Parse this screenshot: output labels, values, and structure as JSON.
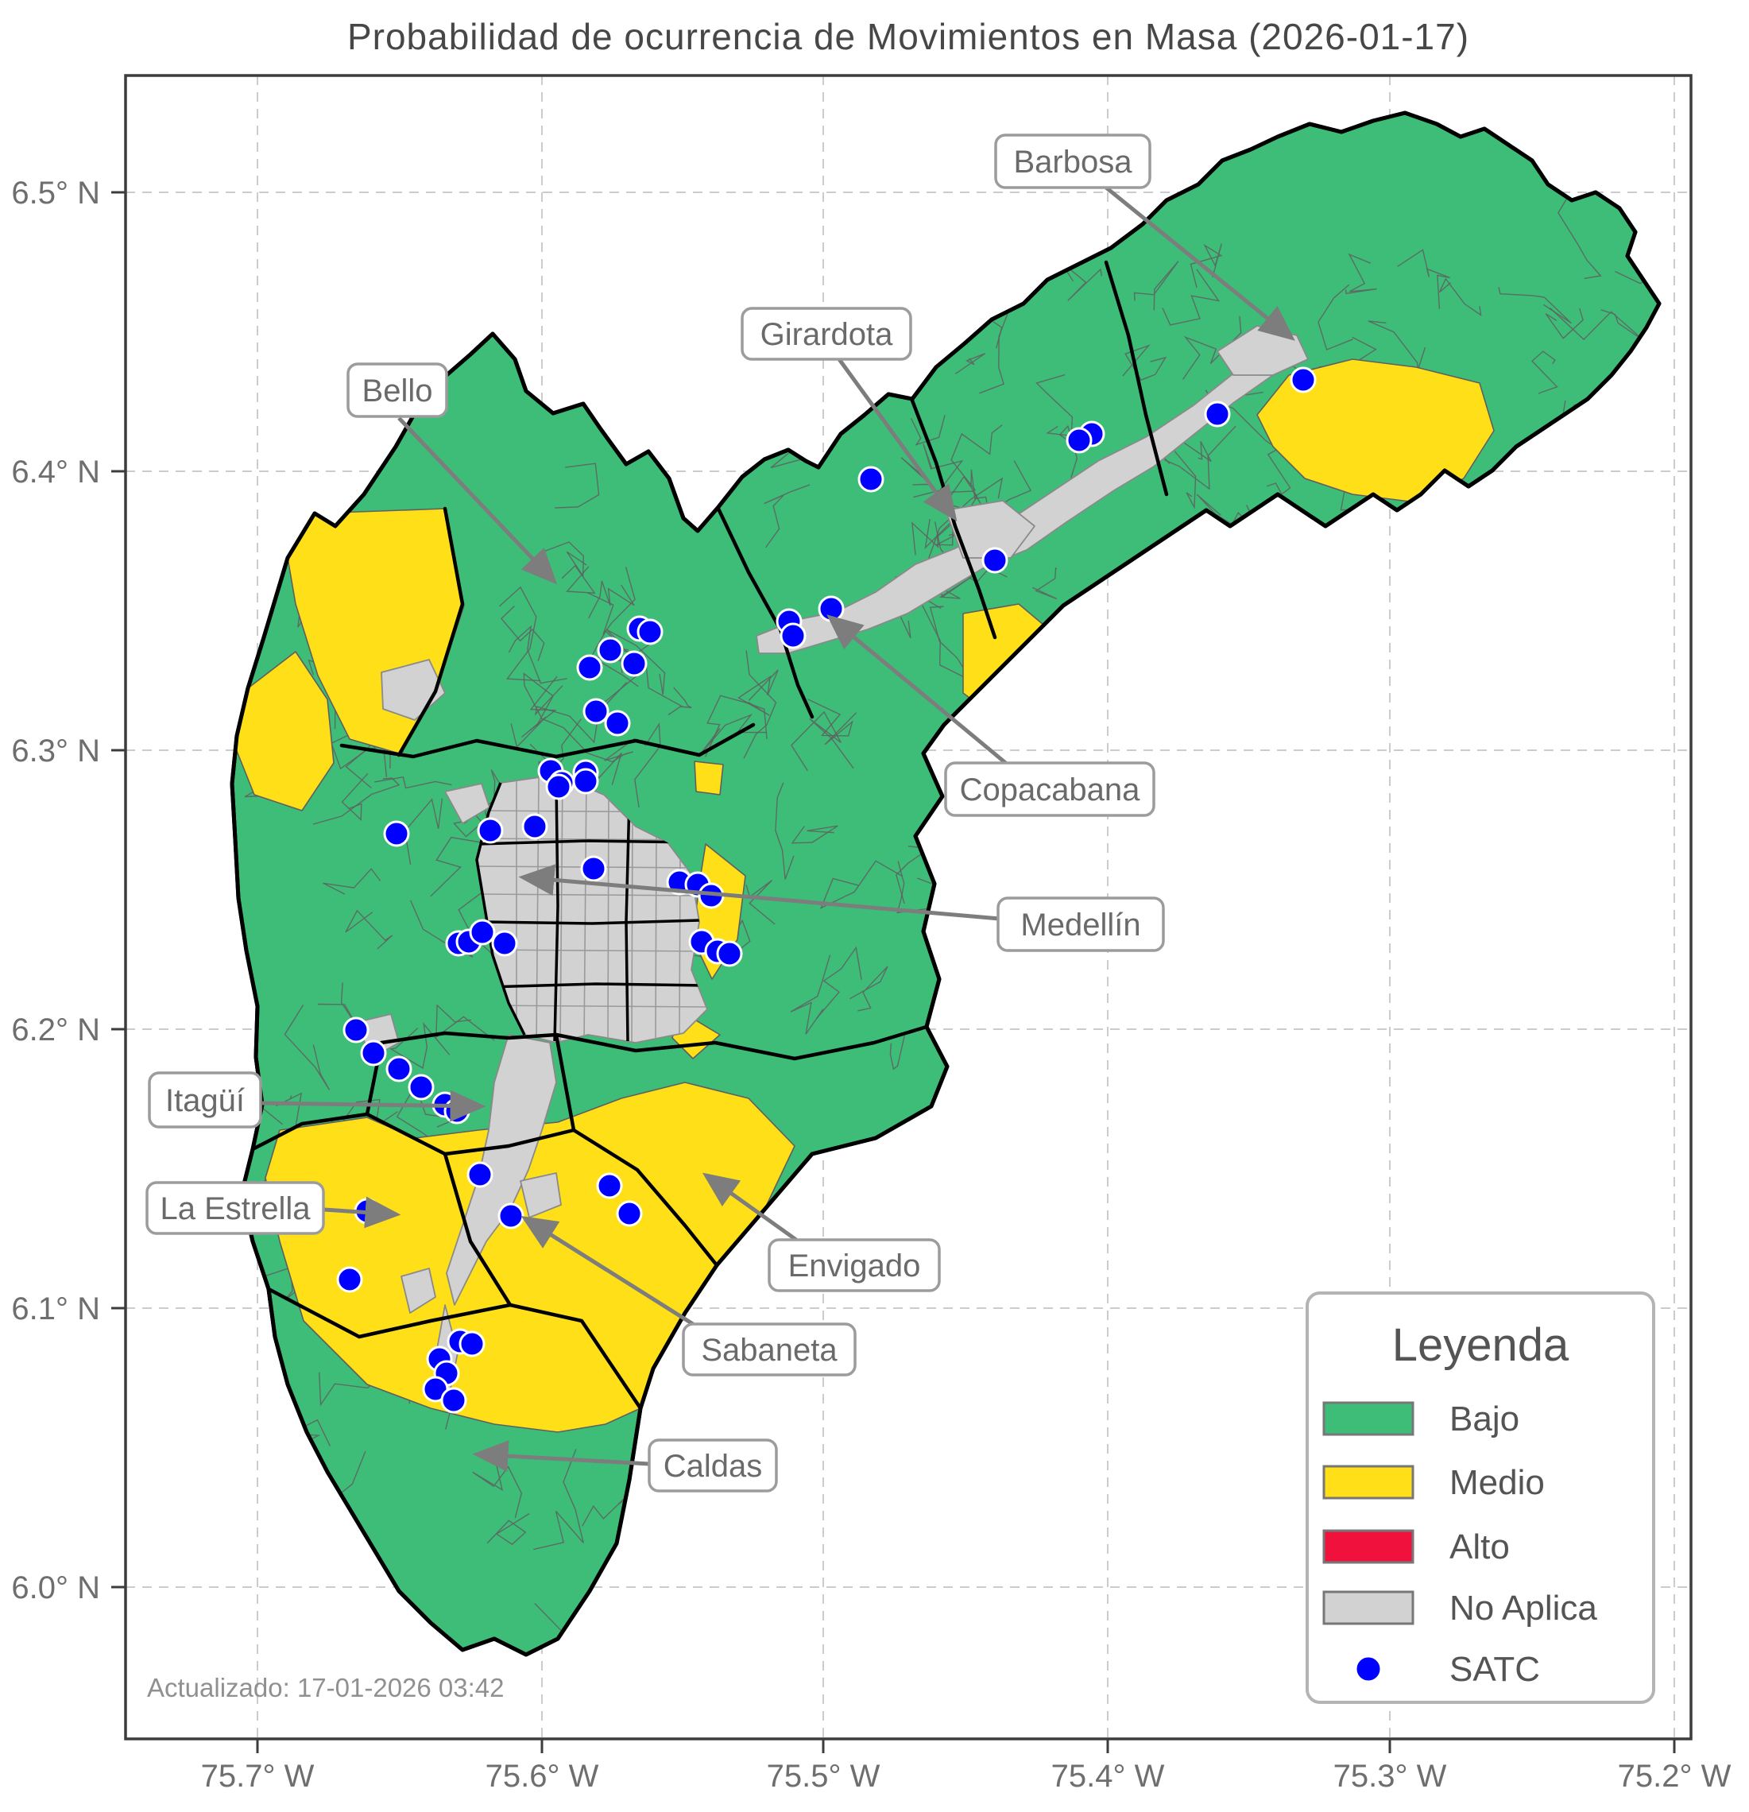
{
  "title": "Probabilidad de ocurrencia de Movimientos en Masa (2026-01-17)",
  "footnote": "Actualizado: 17-01-2026 03:42",
  "axes": {
    "x_ticks": [
      "75.7° W",
      "75.6° W",
      "75.5° W",
      "75.4° W",
      "75.3° W",
      "75.2° W"
    ],
    "y_ticks": [
      "6.5° N",
      "6.4° N",
      "6.3° N",
      "6.2° N",
      "6.1° N",
      "6.0° N"
    ]
  },
  "legend": {
    "title": "Leyenda",
    "items": [
      {
        "label": "Bajo",
        "color": "#3dbd78",
        "type": "patch"
      },
      {
        "label": "Medio",
        "color": "#ffdf17",
        "type": "patch"
      },
      {
        "label": "Alto",
        "color": "#f0113c",
        "type": "patch"
      },
      {
        "label": "No Aplica",
        "color": "#d2d2d2",
        "type": "patch"
      },
      {
        "label": "SATC",
        "color": "#0000ff",
        "type": "point"
      }
    ]
  },
  "cities": [
    {
      "name": "Barbosa"
    },
    {
      "name": "Girardota"
    },
    {
      "name": "Bello"
    },
    {
      "name": "Copacabana"
    },
    {
      "name": "Medellín"
    },
    {
      "name": "Itagüí"
    },
    {
      "name": "La Estrella"
    },
    {
      "name": "Envigado"
    },
    {
      "name": "Sabaneta"
    },
    {
      "name": "Caldas"
    }
  ],
  "colors": {
    "bajo": "#3dbd78",
    "medio": "#ffdf17",
    "alto": "#f0113c",
    "no_aplica": "#d2d2d2",
    "satc": "#0000ff",
    "arrow": "#7d7d7d"
  },
  "satc_points": [
    [
      1640,
      478
    ],
    [
      1532,
      521
    ],
    [
      1374,
      546
    ],
    [
      1358,
      554
    ],
    [
      1252,
      705
    ],
    [
      1096,
      603
    ],
    [
      1046,
      766
    ],
    [
      993,
      782
    ],
    [
      998,
      800
    ],
    [
      805,
      791
    ],
    [
      818,
      795
    ],
    [
      768,
      818
    ],
    [
      798,
      835
    ],
    [
      742,
      840
    ],
    [
      750,
      895
    ],
    [
      777,
      910
    ],
    [
      693,
      970
    ],
    [
      707,
      985
    ],
    [
      737,
      972
    ],
    [
      703,
      990
    ],
    [
      737,
      983
    ],
    [
      499,
      1049
    ],
    [
      617,
      1045
    ],
    [
      673,
      1040
    ],
    [
      747,
      1093
    ],
    [
      855,
      1110
    ],
    [
      878,
      1113
    ],
    [
      895,
      1127
    ],
    [
      577,
      1187
    ],
    [
      590,
      1185
    ],
    [
      607,
      1173
    ],
    [
      635,
      1187
    ],
    [
      883,
      1185
    ],
    [
      903,
      1197
    ],
    [
      918,
      1200
    ],
    [
      448,
      1296
    ],
    [
      470,
      1325
    ],
    [
      502,
      1345
    ],
    [
      530,
      1368
    ],
    [
      560,
      1390
    ],
    [
      575,
      1398
    ],
    [
      604,
      1478
    ],
    [
      643,
      1530
    ],
    [
      462,
      1524
    ],
    [
      767,
      1492
    ],
    [
      792,
      1527
    ],
    [
      440,
      1610
    ],
    [
      579,
      1688
    ],
    [
      594,
      1691
    ],
    [
      553,
      1710
    ],
    [
      562,
      1728
    ],
    [
      548,
      1748
    ],
    [
      571,
      1762
    ]
  ]
}
